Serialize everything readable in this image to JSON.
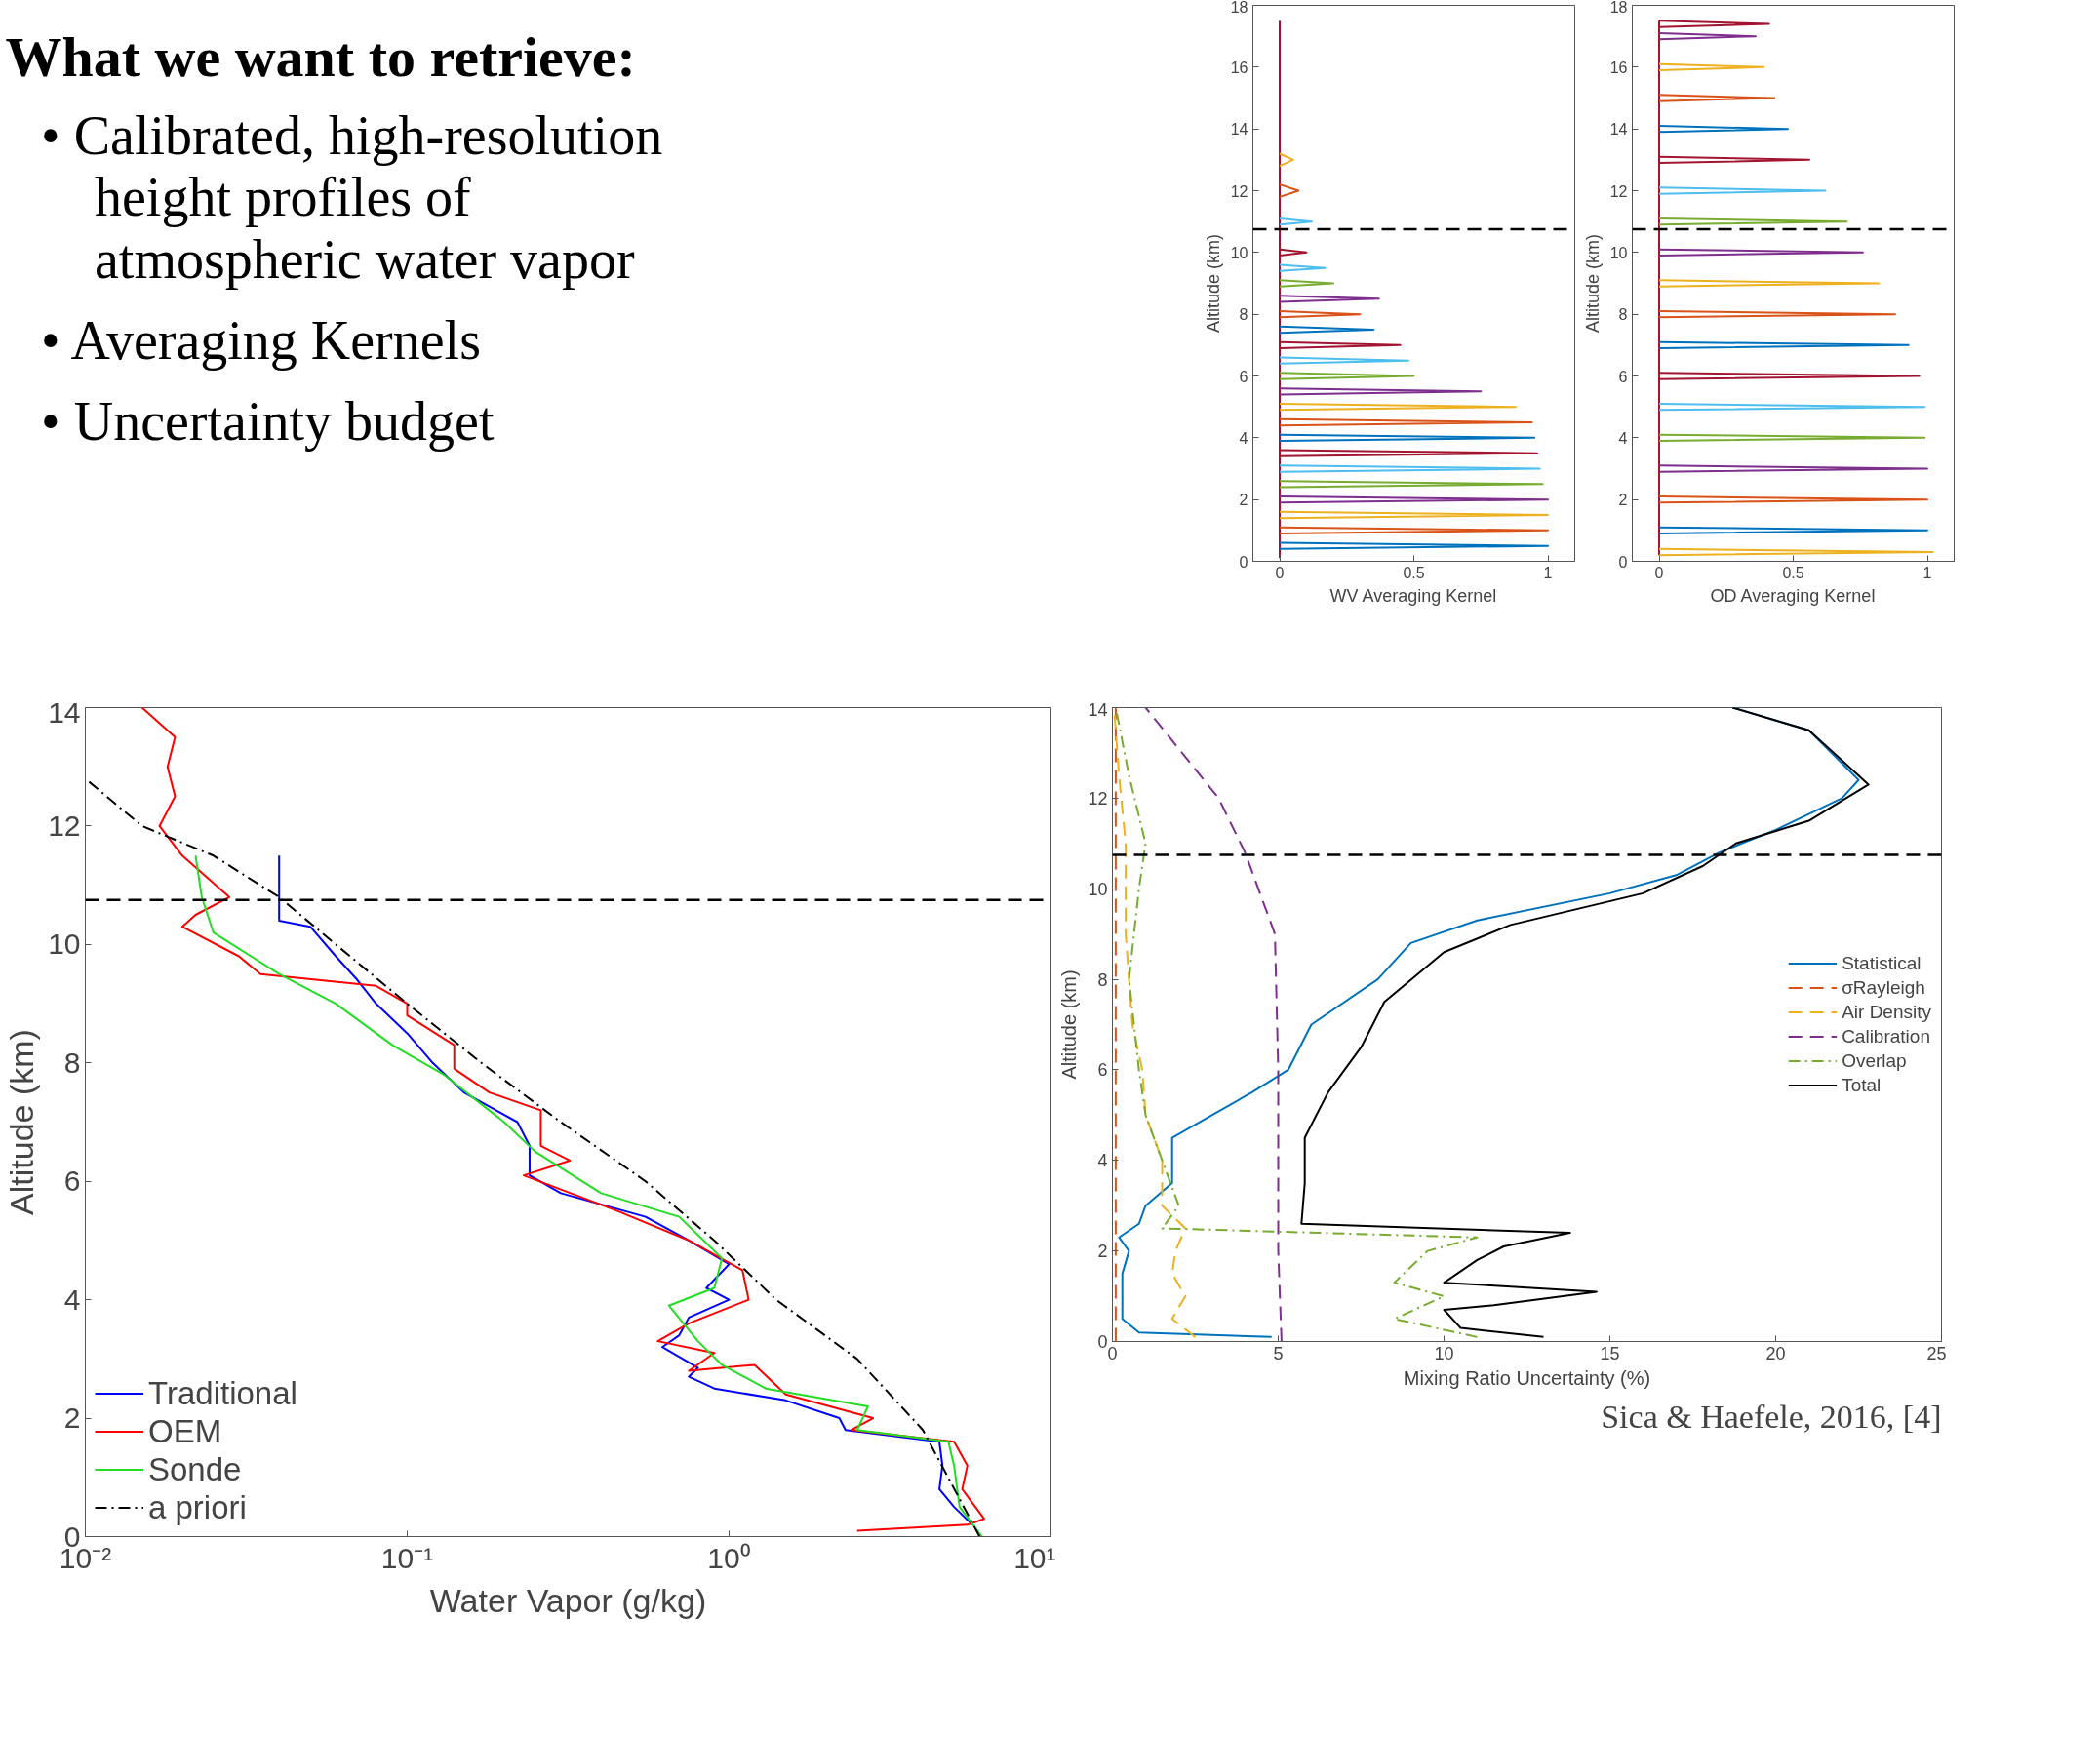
{
  "chart_data": [
    {
      "type": "other",
      "title": "What we want to retrieve:",
      "annotations": [
        "• Calibrated, high-resolution height profiles of atmospheric water vapor",
        "• Averaging Kernels",
        "• Uncertainty budget"
      ]
    },
    {
      "type": "line",
      "xlabel": "WV Averaging Kernel",
      "ylabel": "Altitude (km)",
      "xlim": [
        -0.1,
        1.1
      ],
      "xticks": [
        0,
        0.5,
        1
      ],
      "ylim": [
        0,
        18
      ],
      "yticks": [
        0,
        2,
        4,
        6,
        8,
        10,
        12,
        14,
        16,
        18
      ],
      "grid": false,
      "legend": false,
      "marker": "none",
      "ref_lines": [
        {
          "axis": "y",
          "value": 10.75,
          "color": "#000000",
          "line_style": "dashed"
        }
      ],
      "series": [
        {
          "color": "#a2142f",
          "x": [
            0,
            0
          ],
          "values": [
            0.1,
            17.5
          ]
        },
        {
          "color": "#0072bd",
          "x": [
            0,
            1.0,
            0
          ],
          "values": [
            0.4,
            0.5,
            0.6
          ]
        },
        {
          "color": "#d95319",
          "x": [
            0,
            1.0,
            0
          ],
          "values": [
            0.9,
            1.0,
            1.1
          ]
        },
        {
          "color": "#edb120",
          "x": [
            0,
            1.0,
            0
          ],
          "values": [
            1.4,
            1.5,
            1.6
          ]
        },
        {
          "color": "#7e2f8e",
          "x": [
            0,
            1.0,
            0
          ],
          "values": [
            1.9,
            2.0,
            2.1
          ]
        },
        {
          "color": "#77ac30",
          "x": [
            0,
            0.98,
            0
          ],
          "values": [
            2.4,
            2.5,
            2.6
          ]
        },
        {
          "color": "#4dbeee",
          "x": [
            0,
            0.97,
            0
          ],
          "values": [
            2.9,
            3.0,
            3.1
          ]
        },
        {
          "color": "#a2142f",
          "x": [
            0,
            0.96,
            0
          ],
          "values": [
            3.4,
            3.5,
            3.6
          ]
        },
        {
          "color": "#0072bd",
          "x": [
            0,
            0.95,
            0
          ],
          "values": [
            3.9,
            4.0,
            4.1
          ]
        },
        {
          "color": "#d95319",
          "x": [
            0,
            0.94,
            0
          ],
          "values": [
            4.4,
            4.5,
            4.6
          ]
        },
        {
          "color": "#edb120",
          "x": [
            0,
            0.88,
            0
          ],
          "values": [
            4.9,
            5.0,
            5.1
          ]
        },
        {
          "color": "#7e2f8e",
          "x": [
            0,
            0.75,
            0
          ],
          "values": [
            5.4,
            5.5,
            5.6
          ]
        },
        {
          "color": "#77ac30",
          "x": [
            0,
            0.5,
            0
          ],
          "values": [
            5.9,
            6.0,
            6.1
          ]
        },
        {
          "color": "#4dbeee",
          "x": [
            0,
            0.48,
            0
          ],
          "values": [
            6.4,
            6.5,
            6.6
          ]
        },
        {
          "color": "#a2142f",
          "x": [
            0,
            0.45,
            0
          ],
          "values": [
            6.9,
            7.0,
            7.1
          ]
        },
        {
          "color": "#0072bd",
          "x": [
            0,
            0.35,
            0
          ],
          "values": [
            7.4,
            7.5,
            7.6
          ]
        },
        {
          "color": "#d95319",
          "x": [
            0,
            0.3,
            0
          ],
          "values": [
            7.9,
            8.0,
            8.1
          ]
        },
        {
          "color": "#7e2f8e",
          "x": [
            0,
            0.37,
            0
          ],
          "values": [
            8.4,
            8.5,
            8.6
          ]
        },
        {
          "color": "#77ac30",
          "x": [
            0,
            0.2,
            0
          ],
          "values": [
            8.9,
            9.0,
            9.1
          ]
        },
        {
          "color": "#4dbeee",
          "x": [
            0,
            0.17,
            0
          ],
          "values": [
            9.4,
            9.5,
            9.6
          ]
        },
        {
          "color": "#a2142f",
          "x": [
            0,
            0.1,
            0
          ],
          "values": [
            9.9,
            10.0,
            10.1
          ]
        },
        {
          "color": "#4dbeee",
          "x": [
            0,
            0.12,
            0
          ],
          "values": [
            10.9,
            11.0,
            11.1
          ]
        },
        {
          "color": "#d95319",
          "x": [
            0,
            0.07,
            0
          ],
          "values": [
            11.8,
            12.0,
            12.2
          ]
        },
        {
          "color": "#edb120",
          "x": [
            0,
            0.05,
            0
          ],
          "values": [
            12.8,
            13.0,
            13.2
          ]
        }
      ]
    },
    {
      "type": "line",
      "xlabel": "OD Averaging Kernel",
      "ylabel": "Altitude (km)",
      "xlim": [
        -0.1,
        1.1
      ],
      "xticks": [
        0,
        0.5,
        1
      ],
      "ylim": [
        0,
        18
      ],
      "yticks": [
        0,
        2,
        4,
        6,
        8,
        10,
        12,
        14,
        16,
        18
      ],
      "grid": false,
      "legend": false,
      "marker": "none",
      "ref_lines": [
        {
          "axis": "y",
          "value": 10.75,
          "color": "#000000",
          "line_style": "dashed"
        }
      ],
      "series": [
        {
          "color": "#a2142f",
          "x": [
            0,
            0
          ],
          "values": [
            0.2,
            17.5
          ]
        },
        {
          "color": "#edb120",
          "x": [
            0,
            1.02,
            0
          ],
          "values": [
            0.2,
            0.3,
            0.4
          ]
        },
        {
          "color": "#0072bd",
          "x": [
            0,
            1.0,
            0
          ],
          "values": [
            0.9,
            1.0,
            1.1
          ]
        },
        {
          "color": "#d95319",
          "x": [
            0,
            1.0,
            0
          ],
          "values": [
            1.9,
            2.0,
            2.1
          ]
        },
        {
          "color": "#7e2f8e",
          "x": [
            0,
            1.0,
            0
          ],
          "values": [
            2.9,
            3.0,
            3.1
          ]
        },
        {
          "color": "#77ac30",
          "x": [
            0,
            0.99,
            0
          ],
          "values": [
            3.9,
            4.0,
            4.1
          ]
        },
        {
          "color": "#4dbeee",
          "x": [
            0,
            0.99,
            0
          ],
          "values": [
            4.9,
            5.0,
            5.1
          ]
        },
        {
          "color": "#a2142f",
          "x": [
            0,
            0.97,
            0
          ],
          "values": [
            5.9,
            6.0,
            6.1
          ]
        },
        {
          "color": "#0072bd",
          "x": [
            0,
            0.93,
            0
          ],
          "values": [
            6.9,
            7.0,
            7.1
          ]
        },
        {
          "color": "#d95319",
          "x": [
            0,
            0.88,
            0
          ],
          "values": [
            7.9,
            8.0,
            8.1
          ]
        },
        {
          "color": "#edb120",
          "x": [
            0,
            0.82,
            0
          ],
          "values": [
            8.9,
            9.0,
            9.1
          ]
        },
        {
          "color": "#7e2f8e",
          "x": [
            0,
            0.76,
            0
          ],
          "values": [
            9.9,
            10.0,
            10.1
          ]
        },
        {
          "color": "#77ac30",
          "x": [
            0,
            0.7,
            0
          ],
          "values": [
            10.9,
            11.0,
            11.1
          ]
        },
        {
          "color": "#4dbeee",
          "x": [
            0,
            0.62,
            0
          ],
          "values": [
            11.9,
            12.0,
            12.1
          ]
        },
        {
          "color": "#a2142f",
          "x": [
            0,
            0.56,
            0
          ],
          "values": [
            12.9,
            13.0,
            13.1
          ]
        },
        {
          "color": "#0072bd",
          "x": [
            0,
            0.48,
            0
          ],
          "values": [
            13.9,
            14.0,
            14.1
          ]
        },
        {
          "color": "#d95319",
          "x": [
            0,
            0.43,
            0
          ],
          "values": [
            14.9,
            15.0,
            15.1
          ]
        },
        {
          "color": "#edb120",
          "x": [
            0,
            0.39,
            0
          ],
          "values": [
            15.9,
            16.0,
            16.1
          ]
        },
        {
          "color": "#7e2f8e",
          "x": [
            0,
            0.36,
            0
          ],
          "values": [
            16.9,
            17.0,
            17.1
          ]
        },
        {
          "color": "#a2142f",
          "x": [
            0,
            0.41,
            0
          ],
          "values": [
            17.3,
            17.4,
            17.5
          ]
        }
      ]
    },
    {
      "type": "line",
      "xlabel": "Water Vapor (g/kg)",
      "ylabel": "Altitude (km)",
      "log": "x",
      "xlim": [
        0.01,
        10
      ],
      "xticks": [
        {
          "value": 0.01,
          "label": "10⁻²"
        },
        {
          "value": 0.1,
          "label": "10⁻¹"
        },
        {
          "value": 1,
          "label": "10⁰"
        },
        {
          "value": 10,
          "label": "10¹"
        }
      ],
      "ylim": [
        0,
        14
      ],
      "yticks": [
        0,
        2,
        4,
        6,
        8,
        10,
        12,
        14
      ],
      "grid": false,
      "legend": "bottom left",
      "marker": "none",
      "ref_lines": [
        {
          "axis": "y",
          "value": 10.75,
          "color": "#000000",
          "line_style": "dashed"
        }
      ],
      "series": [
        {
          "name": "Traditional",
          "color": "#0000ff",
          "line_style": "solid",
          "x": [
            5.7,
            5.0,
            4.5,
            4.6,
            4.5,
            2.3,
            2.2,
            1.5,
            0.9,
            0.75,
            0.8,
            0.62,
            0.7,
            0.75,
            1.0,
            0.85,
            1.0,
            0.75,
            0.55,
            0.3,
            0.24,
            0.24,
            0.22,
            0.15,
            0.12,
            0.1,
            0.08,
            0.07,
            0.06,
            0.05,
            0.04,
            0.04
          ],
          "values": [
            0.2,
            0.5,
            0.8,
            1.2,
            1.6,
            1.8,
            2.0,
            2.3,
            2.5,
            2.7,
            2.85,
            3.2,
            3.4,
            3.7,
            4.0,
            4.2,
            4.6,
            5.0,
            5.4,
            5.8,
            6.1,
            6.6,
            7.0,
            7.5,
            8.0,
            8.5,
            9.0,
            9.4,
            9.8,
            10.3,
            10.4,
            11.5
          ]
        },
        {
          "name": "OEM",
          "color": "#ff0000",
          "line_style": "solid",
          "x": [
            2.5,
            5.5,
            6.2,
            5.3,
            5.5,
            5.0,
            2.4,
            2.8,
            1.5,
            1.2,
            0.75,
            0.9,
            0.6,
            0.75,
            1.15,
            1.1,
            0.75,
            0.45,
            0.23,
            0.32,
            0.26,
            0.26,
            0.18,
            0.14,
            0.14,
            0.1,
            0.1,
            0.08,
            0.035,
            0.03,
            0.02,
            0.022,
            0.028,
            0.02,
            0.017,
            0.019,
            0.018,
            0.019,
            0.015
          ],
          "values": [
            0.1,
            0.2,
            0.3,
            0.8,
            1.2,
            1.6,
            1.8,
            2.0,
            2.4,
            2.9,
            2.8,
            3.1,
            3.3,
            3.6,
            4.0,
            4.5,
            5.0,
            5.5,
            6.1,
            6.35,
            6.6,
            7.2,
            7.5,
            7.9,
            8.3,
            8.8,
            9.0,
            9.3,
            9.5,
            9.8,
            10.3,
            10.5,
            10.8,
            11.5,
            12.0,
            12.5,
            13.0,
            13.5,
            14.0
          ]
        },
        {
          "name": "Sonde",
          "color": "#22dd22",
          "line_style": "solid",
          "x": [
            6.1,
            5.2,
            5.0,
            4.8,
            2.5,
            2.7,
            1.3,
            0.95,
            0.8,
            0.65,
            0.9,
            0.95,
            0.7,
            0.4,
            0.25,
            0.2,
            0.13,
            0.09,
            0.06,
            0.04,
            0.025,
            0.023,
            0.022
          ],
          "values": [
            0.0,
            0.5,
            1.2,
            1.6,
            1.8,
            2.2,
            2.5,
            2.9,
            3.3,
            3.9,
            4.2,
            4.7,
            5.4,
            5.8,
            6.5,
            7.0,
            7.8,
            8.3,
            9.0,
            9.5,
            10.2,
            10.8,
            11.5
          ]
        },
        {
          "name": "a priori",
          "color": "#000000",
          "line_style": "dashdot",
          "x": [
            6.0,
            4.0,
            2.5,
            1.4,
            0.9,
            0.55,
            0.3,
            0.17,
            0.1,
            0.06,
            0.04,
            0.025,
            0.015,
            0.01
          ],
          "values": [
            0.0,
            1.8,
            3.0,
            4.0,
            5.0,
            6.0,
            7.0,
            8.0,
            9.0,
            10.0,
            10.8,
            11.5,
            12.0,
            12.8
          ]
        }
      ]
    },
    {
      "type": "line",
      "xlabel": "Mixing Ratio Uncertainty (%)",
      "ylabel": "Altitude (km)",
      "xlim": [
        0,
        25
      ],
      "xticks": [
        0,
        5,
        10,
        15,
        20,
        25
      ],
      "ylim": [
        0,
        14
      ],
      "yticks": [
        0,
        2,
        4,
        6,
        8,
        10,
        12,
        14
      ],
      "grid": false,
      "legend": "right",
      "marker": "none",
      "ref_lines": [
        {
          "axis": "y",
          "value": 10.75,
          "color": "#000000",
          "line_style": "dashed"
        }
      ],
      "annotations": [
        "Sica & Haefele, 2016, [4]"
      ],
      "series": [
        {
          "name": "Statistical",
          "color": "#0072bd",
          "line_style": "solid",
          "x": [
            4.8,
            0.8,
            0.3,
            0.3,
            0.5,
            0.2,
            0.8,
            1.0,
            1.8,
            1.8,
            3.0,
            4.2,
            5.3,
            6.0,
            8.0,
            9.0,
            11.0,
            15.0,
            17.0,
            18.3,
            20.0,
            22.0,
            22.5,
            21.0,
            18.7
          ],
          "values": [
            0.1,
            0.2,
            0.5,
            1.5,
            2.0,
            2.3,
            2.6,
            3.0,
            3.5,
            4.5,
            5.0,
            5.5,
            6.0,
            7.0,
            8.0,
            8.8,
            9.3,
            9.9,
            10.3,
            10.8,
            11.3,
            12.0,
            12.4,
            13.5,
            14.0
          ]
        },
        {
          "name": "σRayleigh",
          "color": "#d95319",
          "line_style": "dashed",
          "x": [
            0.1,
            0.1
          ],
          "values": [
            0,
            14
          ]
        },
        {
          "name": "Air Density",
          "color": "#edb120",
          "line_style": "dashed",
          "x": [
            2.5,
            1.8,
            2.2,
            1.8,
            1.9,
            2.2,
            1.5,
            1.5,
            1.0,
            0.9,
            0.6,
            0.4,
            0.4,
            0.2,
            0.05
          ],
          "values": [
            0.1,
            0.5,
            1.0,
            1.5,
            2.0,
            2.5,
            3.0,
            4.0,
            5.0,
            6.0,
            7.0,
            9.0,
            11.0,
            12.5,
            14.0
          ]
        },
        {
          "name": "Calibration",
          "color": "#7e2f8e",
          "line_style": "dashed",
          "x": [
            5.1,
            5.0,
            5.0,
            4.9,
            4.6,
            4.0,
            3.2,
            1.0
          ],
          "values": [
            0.0,
            2.0,
            6.0,
            9.0,
            9.6,
            10.8,
            12.0,
            14.0
          ]
        },
        {
          "name": "Overlap",
          "color": "#77ac30",
          "line_style": "dashdot",
          "x": [
            11.0,
            8.5,
            10,
            8.5,
            9.5,
            11,
            1.5,
            2.0,
            1.5,
            1.0,
            0.8,
            0.5,
            0.8,
            1.0,
            0.5,
            0.1
          ],
          "values": [
            0.1,
            0.5,
            1.0,
            1.3,
            2.0,
            2.3,
            2.5,
            3.0,
            4.0,
            5.0,
            6.0,
            8.0,
            10.0,
            11.0,
            12.5,
            14.0
          ]
        },
        {
          "name": "Total",
          "color": "#000000",
          "line_style": "solid",
          "x": [
            13.0,
            10.5,
            10.0,
            11.5,
            14.6,
            10.0,
            11.0,
            11.8,
            13.8,
            5.7,
            5.8,
            5.8,
            6.5,
            7.5,
            8.2,
            10.0,
            12.0,
            16.0,
            17.8,
            18.8,
            21.0,
            22.8,
            21.0,
            18.7
          ],
          "values": [
            0.1,
            0.3,
            0.7,
            0.8,
            1.1,
            1.3,
            1.8,
            2.1,
            2.4,
            2.6,
            3.5,
            4.5,
            5.5,
            6.5,
            7.5,
            8.6,
            9.2,
            9.9,
            10.5,
            11.0,
            11.5,
            12.3,
            13.5,
            14.0
          ]
        }
      ]
    }
  ]
}
